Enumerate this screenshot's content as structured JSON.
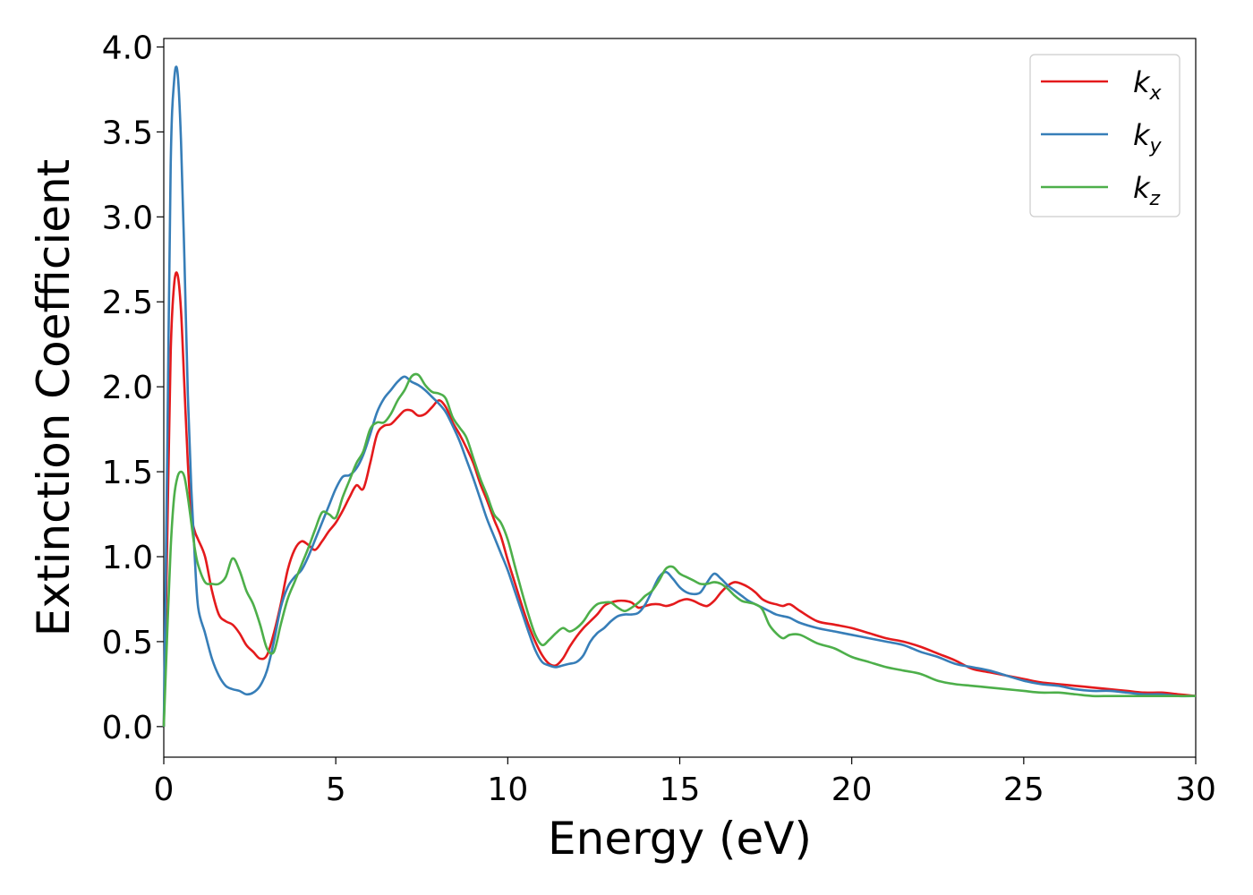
{
  "chart_data": {
    "type": "line",
    "xlabel": "Energy (eV)",
    "ylabel": "Extinction Coefficient",
    "xlim": [
      0,
      30
    ],
    "ylim": [
      -0.18,
      4.05
    ],
    "xticks": [
      "0",
      "5",
      "10",
      "15",
      "20",
      "25",
      "30"
    ],
    "yticks": [
      "0.0",
      "0.5",
      "1.0",
      "1.5",
      "2.0",
      "2.5",
      "3.0",
      "3.5",
      "4.0"
    ],
    "grid": false,
    "legend_position": "top-right",
    "series": [
      {
        "name": "k",
        "subscript": "x",
        "color": "#e41a1c",
        "x": [
          0,
          0.1,
          0.2,
          0.3,
          0.4,
          0.5,
          0.6,
          0.7,
          0.8,
          0.9,
          1.0,
          1.2,
          1.4,
          1.6,
          1.8,
          2.0,
          2.2,
          2.4,
          2.6,
          2.8,
          3.0,
          3.2,
          3.4,
          3.6,
          3.8,
          4.0,
          4.2,
          4.4,
          4.6,
          4.8,
          5.0,
          5.2,
          5.4,
          5.6,
          5.8,
          6.0,
          6.2,
          6.4,
          6.6,
          6.8,
          7.0,
          7.2,
          7.4,
          7.6,
          7.8,
          8.0,
          8.2,
          8.4,
          8.6,
          8.8,
          9.0,
          9.2,
          9.4,
          9.6,
          9.8,
          10.0,
          10.2,
          10.4,
          10.6,
          10.8,
          11.0,
          11.2,
          11.4,
          11.6,
          11.8,
          12.0,
          12.2,
          12.4,
          12.6,
          12.8,
          13.0,
          13.2,
          13.4,
          13.6,
          13.8,
          14.0,
          14.2,
          14.4,
          14.6,
          14.8,
          15.0,
          15.2,
          15.4,
          15.6,
          15.8,
          16.0,
          16.2,
          16.4,
          16.6,
          16.8,
          17.0,
          17.2,
          17.4,
          17.6,
          17.8,
          18.0,
          18.2,
          18.5,
          19.0,
          19.5,
          20.0,
          20.5,
          21.0,
          21.5,
          22.0,
          22.5,
          23.0,
          23.5,
          24.0,
          24.5,
          25.0,
          25.5,
          26.0,
          26.5,
          27.0,
          27.5,
          28.0,
          28.5,
          29.0,
          29.5,
          30.0
        ],
        "values": [
          0.0,
          1.1,
          2.2,
          2.6,
          2.66,
          2.45,
          2.0,
          1.55,
          1.25,
          1.15,
          1.1,
          1.0,
          0.8,
          0.66,
          0.62,
          0.6,
          0.55,
          0.48,
          0.44,
          0.4,
          0.42,
          0.55,
          0.72,
          0.92,
          1.04,
          1.09,
          1.07,
          1.04,
          1.09,
          1.15,
          1.2,
          1.27,
          1.35,
          1.42,
          1.4,
          1.55,
          1.72,
          1.77,
          1.78,
          1.82,
          1.86,
          1.86,
          1.83,
          1.84,
          1.88,
          1.92,
          1.88,
          1.79,
          1.72,
          1.64,
          1.55,
          1.43,
          1.33,
          1.22,
          1.12,
          0.98,
          0.85,
          0.72,
          0.6,
          0.5,
          0.42,
          0.37,
          0.36,
          0.4,
          0.47,
          0.53,
          0.58,
          0.62,
          0.66,
          0.71,
          0.73,
          0.74,
          0.74,
          0.73,
          0.7,
          0.71,
          0.72,
          0.72,
          0.71,
          0.72,
          0.74,
          0.75,
          0.74,
          0.72,
          0.71,
          0.74,
          0.79,
          0.83,
          0.85,
          0.84,
          0.82,
          0.79,
          0.75,
          0.73,
          0.72,
          0.71,
          0.72,
          0.68,
          0.62,
          0.6,
          0.58,
          0.55,
          0.52,
          0.5,
          0.47,
          0.43,
          0.39,
          0.34,
          0.32,
          0.3,
          0.28,
          0.26,
          0.25,
          0.24,
          0.23,
          0.22,
          0.21,
          0.2,
          0.2,
          0.19,
          0.18
        ]
      },
      {
        "name": "k",
        "subscript": "y",
        "color": "#377eb8",
        "x": [
          0,
          0.1,
          0.2,
          0.3,
          0.4,
          0.5,
          0.6,
          0.7,
          0.8,
          0.9,
          1.0,
          1.2,
          1.4,
          1.6,
          1.8,
          2.0,
          2.2,
          2.4,
          2.6,
          2.8,
          3.0,
          3.2,
          3.4,
          3.6,
          3.8,
          4.0,
          4.2,
          4.4,
          4.6,
          4.8,
          5.0,
          5.2,
          5.4,
          5.6,
          5.8,
          6.0,
          6.2,
          6.4,
          6.6,
          6.8,
          7.0,
          7.2,
          7.4,
          7.6,
          7.8,
          8.0,
          8.2,
          8.4,
          8.6,
          8.8,
          9.0,
          9.2,
          9.4,
          9.6,
          9.8,
          10.0,
          10.2,
          10.4,
          10.6,
          10.8,
          11.0,
          11.2,
          11.4,
          11.6,
          11.8,
          12.0,
          12.2,
          12.4,
          12.6,
          12.8,
          13.0,
          13.2,
          13.4,
          13.6,
          13.8,
          14.0,
          14.2,
          14.4,
          14.6,
          14.8,
          15.0,
          15.2,
          15.4,
          15.6,
          15.8,
          16.0,
          16.2,
          16.4,
          16.6,
          16.8,
          17.0,
          17.2,
          17.4,
          17.6,
          17.8,
          18.0,
          18.2,
          18.5,
          19.0,
          19.5,
          20.0,
          20.5,
          21.0,
          21.5,
          22.0,
          22.5,
          23.0,
          23.5,
          24.0,
          24.5,
          25.0,
          25.5,
          26.0,
          26.5,
          27.0,
          27.5,
          28.0,
          28.5,
          29.0,
          29.5,
          30.0
        ],
        "values": [
          0.0,
          1.6,
          3.3,
          3.8,
          3.85,
          3.45,
          2.75,
          1.95,
          1.4,
          1.0,
          0.7,
          0.55,
          0.4,
          0.3,
          0.24,
          0.22,
          0.21,
          0.19,
          0.2,
          0.24,
          0.33,
          0.5,
          0.7,
          0.82,
          0.88,
          0.92,
          1.0,
          1.1,
          1.2,
          1.3,
          1.4,
          1.47,
          1.48,
          1.52,
          1.6,
          1.72,
          1.85,
          1.93,
          1.98,
          2.03,
          2.06,
          2.03,
          2.01,
          1.98,
          1.94,
          1.9,
          1.85,
          1.77,
          1.68,
          1.57,
          1.46,
          1.34,
          1.22,
          1.12,
          1.02,
          0.92,
          0.8,
          0.68,
          0.56,
          0.45,
          0.38,
          0.36,
          0.35,
          0.36,
          0.37,
          0.38,
          0.42,
          0.5,
          0.55,
          0.58,
          0.62,
          0.65,
          0.66,
          0.66,
          0.67,
          0.72,
          0.8,
          0.88,
          0.91,
          0.87,
          0.82,
          0.79,
          0.78,
          0.79,
          0.85,
          0.9,
          0.87,
          0.83,
          0.8,
          0.77,
          0.74,
          0.72,
          0.7,
          0.68,
          0.66,
          0.65,
          0.64,
          0.61,
          0.58,
          0.56,
          0.54,
          0.52,
          0.5,
          0.48,
          0.44,
          0.41,
          0.37,
          0.35,
          0.33,
          0.3,
          0.27,
          0.25,
          0.24,
          0.22,
          0.21,
          0.21,
          0.2,
          0.19,
          0.19,
          0.18,
          0.18
        ]
      },
      {
        "name": "k",
        "subscript": "z",
        "color": "#4daf4a",
        "x": [
          0,
          0.1,
          0.2,
          0.3,
          0.4,
          0.5,
          0.6,
          0.7,
          0.8,
          0.9,
          1.0,
          1.2,
          1.4,
          1.6,
          1.8,
          2.0,
          2.2,
          2.4,
          2.6,
          2.8,
          3.0,
          3.2,
          3.4,
          3.6,
          3.8,
          4.0,
          4.2,
          4.4,
          4.6,
          4.8,
          5.0,
          5.2,
          5.4,
          5.6,
          5.8,
          6.0,
          6.2,
          6.4,
          6.6,
          6.8,
          7.0,
          7.2,
          7.4,
          7.6,
          7.8,
          8.0,
          8.2,
          8.4,
          8.6,
          8.8,
          9.0,
          9.2,
          9.4,
          9.6,
          9.8,
          10.0,
          10.2,
          10.4,
          10.6,
          10.8,
          11.0,
          11.2,
          11.4,
          11.6,
          11.8,
          12.0,
          12.2,
          12.4,
          12.6,
          12.8,
          13.0,
          13.2,
          13.4,
          13.6,
          13.8,
          14.0,
          14.2,
          14.4,
          14.6,
          14.8,
          15.0,
          15.2,
          15.4,
          15.6,
          15.8,
          16.0,
          16.2,
          16.4,
          16.6,
          16.8,
          17.0,
          17.2,
          17.4,
          17.6,
          17.8,
          18.0,
          18.2,
          18.5,
          19.0,
          19.5,
          20.0,
          20.5,
          21.0,
          21.5,
          22.0,
          22.5,
          23.0,
          23.5,
          24.0,
          24.5,
          25.0,
          25.5,
          26.0,
          26.5,
          27.0,
          27.5,
          28.0,
          28.5,
          29.0,
          29.5,
          30.0
        ],
        "values": [
          0.0,
          0.55,
          1.05,
          1.35,
          1.47,
          1.5,
          1.47,
          1.35,
          1.2,
          1.05,
          0.95,
          0.85,
          0.84,
          0.84,
          0.88,
          0.99,
          0.92,
          0.8,
          0.72,
          0.6,
          0.46,
          0.44,
          0.6,
          0.75,
          0.85,
          0.95,
          1.05,
          1.16,
          1.26,
          1.25,
          1.23,
          1.35,
          1.45,
          1.55,
          1.62,
          1.75,
          1.79,
          1.79,
          1.84,
          1.92,
          1.98,
          2.06,
          2.07,
          2.01,
          1.97,
          1.96,
          1.93,
          1.82,
          1.76,
          1.7,
          1.58,
          1.46,
          1.36,
          1.25,
          1.2,
          1.1,
          0.95,
          0.8,
          0.66,
          0.54,
          0.48,
          0.51,
          0.55,
          0.58,
          0.56,
          0.58,
          0.62,
          0.68,
          0.72,
          0.73,
          0.73,
          0.7,
          0.68,
          0.7,
          0.73,
          0.77,
          0.8,
          0.86,
          0.93,
          0.94,
          0.9,
          0.88,
          0.86,
          0.84,
          0.84,
          0.85,
          0.84,
          0.81,
          0.77,
          0.74,
          0.73,
          0.72,
          0.69,
          0.6,
          0.55,
          0.52,
          0.54,
          0.54,
          0.49,
          0.46,
          0.41,
          0.38,
          0.35,
          0.33,
          0.31,
          0.27,
          0.25,
          0.24,
          0.23,
          0.22,
          0.21,
          0.2,
          0.2,
          0.19,
          0.18,
          0.18,
          0.18,
          0.18,
          0.18,
          0.18,
          0.18
        ]
      }
    ]
  }
}
